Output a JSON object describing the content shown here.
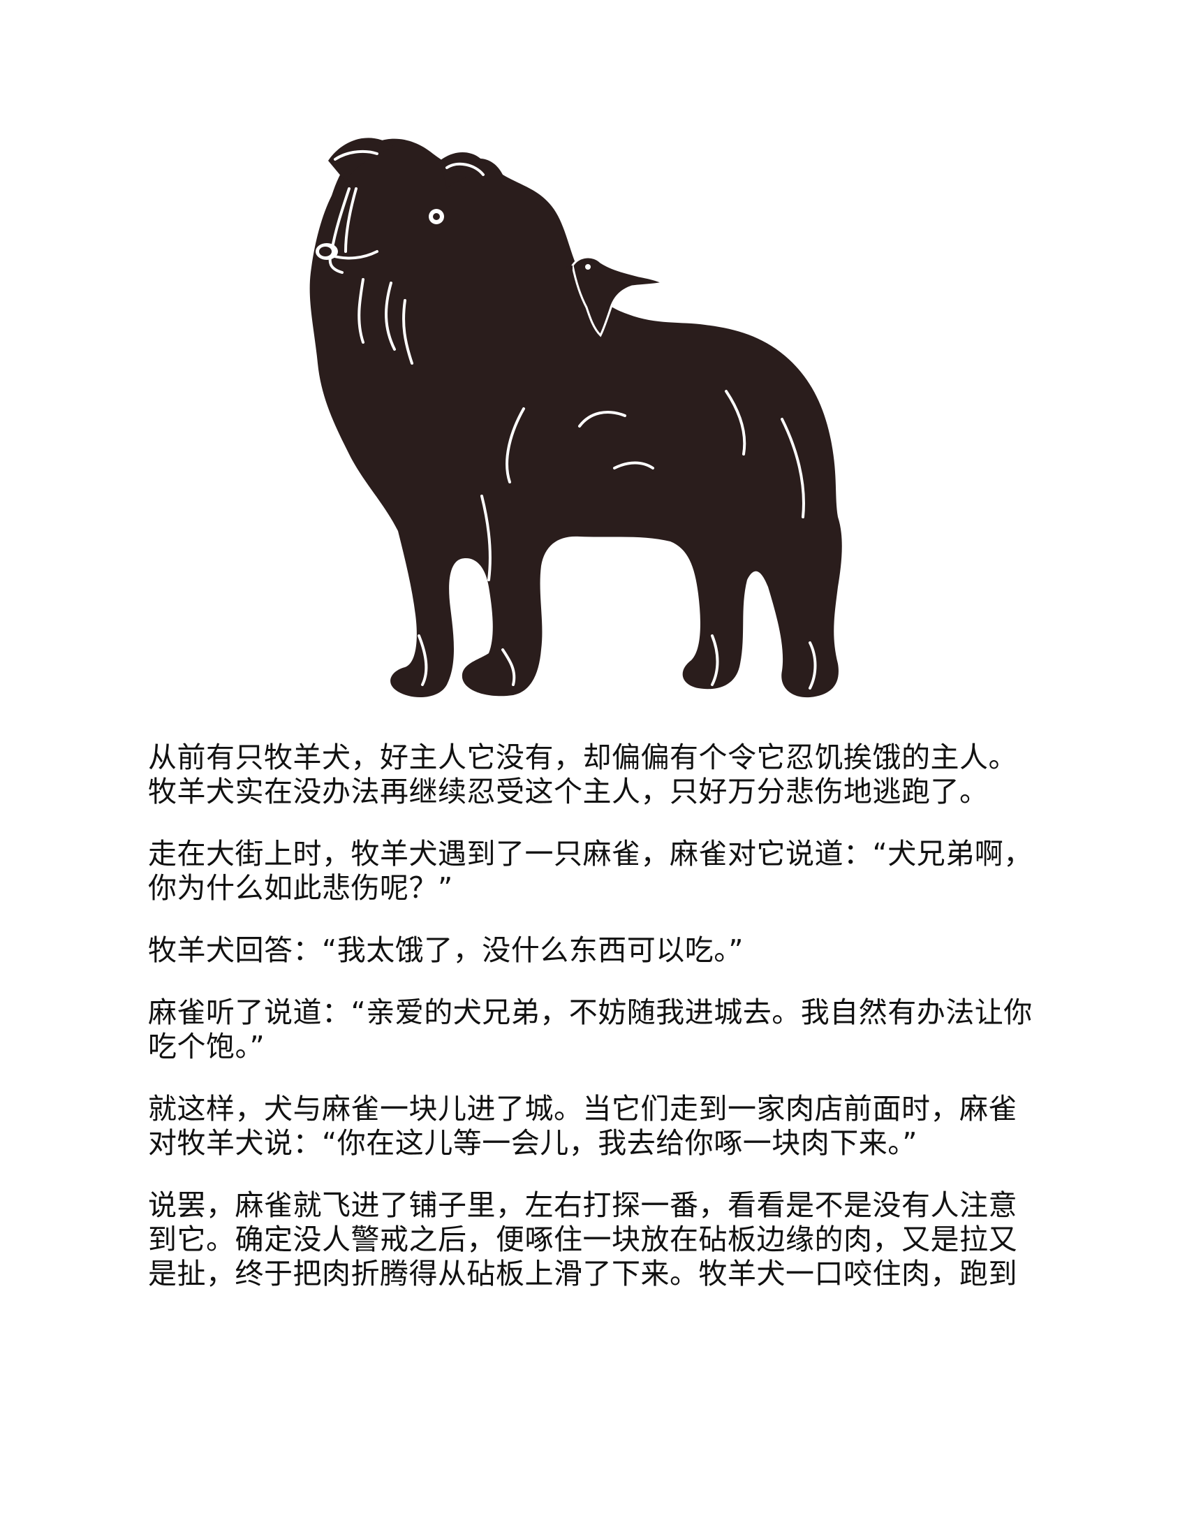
{
  "illustration": {
    "subject": "dog-with-sparrow-silhouette",
    "ink_color": "#2a1d1c",
    "line_color": "#ffffff"
  },
  "story": {
    "paragraphs": [
      {
        "lines": [
          "从前有只牧羊犬，好主人它没有，却偏偏有个令它忍饥挨饿的主人。",
          "牧羊犬实在没办法再继续忍受这个主人，只好万分悲伤地逃跑了。"
        ]
      },
      {
        "lines": [
          "走在大街上时，牧羊犬遇到了一只麻雀，麻雀对它说道：“犬兄弟啊，",
          "你为什么如此悲伤呢？”"
        ]
      },
      {
        "lines": [
          "牧羊犬回答：“我太饿了，没什么东西可以吃。”"
        ]
      },
      {
        "lines": [
          "麻雀听了说道：“亲爱的犬兄弟，不妨随我进城去。我自然有办法让你",
          "吃个饱。”"
        ]
      },
      {
        "lines": [
          "就这样，犬与麻雀一块儿进了城。当它们走到一家肉店前面时，麻雀",
          "对牧羊犬说：“你在这儿等一会儿，我去给你啄一块肉下来。”"
        ]
      },
      {
        "lines": [
          "说罢，麻雀就飞进了铺子里，左右打探一番，看看是不是没有人注意",
          "到它。确定没人警戒之后，便啄住一块放在砧板边缘的肉，又是拉又",
          "是扯，终于把肉折腾得从砧板上滑了下来。牧羊犬一口咬住肉，跑到"
        ]
      }
    ]
  }
}
